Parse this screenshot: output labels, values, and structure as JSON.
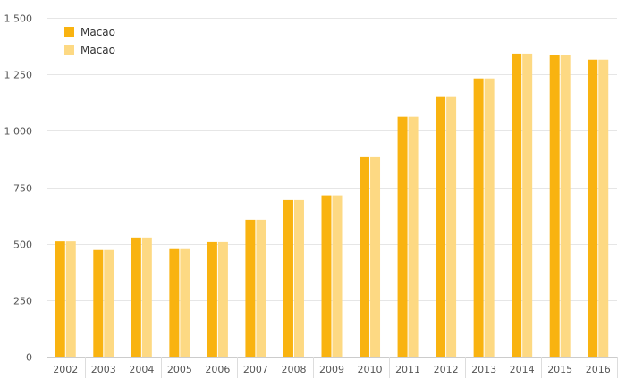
{
  "chart_data": {
    "type": "bar",
    "title": "",
    "xlabel": "",
    "ylabel": "",
    "categories": [
      "2002",
      "2003",
      "2004",
      "2005",
      "2006",
      "2007",
      "2008",
      "2009",
      "2010",
      "2011",
      "2012",
      "2013",
      "2014",
      "2015",
      "2016"
    ],
    "series": [
      {
        "name": "Macao",
        "color": "#F9B310",
        "values": [
          510,
          472,
          527,
          476,
          507,
          606,
          693,
          714,
          883,
          1062,
          1153,
          1232,
          1342,
          1334,
          1315
        ]
      },
      {
        "name": "Macao",
        "color": "#FDD983",
        "values": [
          510,
          472,
          527,
          476,
          507,
          606,
          693,
          714,
          883,
          1062,
          1153,
          1232,
          1342,
          1334,
          1315
        ]
      }
    ],
    "ylim": [
      0,
      1500
    ],
    "yticks": [
      0,
      250,
      500,
      750,
      1000,
      1250,
      1500
    ],
    "ytick_labels": [
      "0",
      "250",
      "500",
      "750",
      "1 000",
      "1 250",
      "1 500"
    ],
    "grid": true,
    "legend_position": "top-left"
  }
}
